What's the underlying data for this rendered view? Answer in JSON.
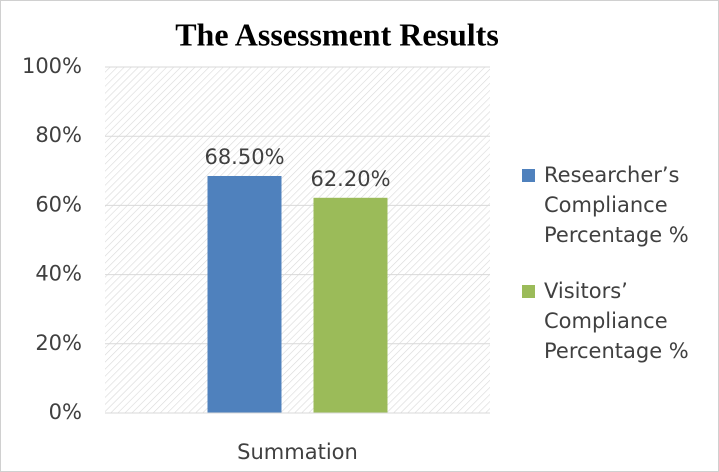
{
  "chart_data": {
    "type": "bar",
    "title": "The Assessment Results",
    "categories": [
      "Summation"
    ],
    "series": [
      {
        "name": "Researcher’s Compliance Percentage %",
        "color": "#4f81bd",
        "values": [
          68.5
        ],
        "value_labels": [
          "68.50%"
        ]
      },
      {
        "name": "Visitors’ Compliance Percentage %",
        "color": "#9bbb59",
        "values": [
          62.2
        ],
        "value_labels": [
          "62.20%"
        ]
      }
    ],
    "ylim": [
      0,
      100
    ],
    "yticks": [
      {
        "value": 0,
        "label": "0%"
      },
      {
        "value": 20,
        "label": "20%"
      },
      {
        "value": 40,
        "label": "40%"
      },
      {
        "value": 60,
        "label": "60%"
      },
      {
        "value": 80,
        "label": "80%"
      },
      {
        "value": 100,
        "label": "100%"
      }
    ],
    "grid": true,
    "legend": "right"
  }
}
